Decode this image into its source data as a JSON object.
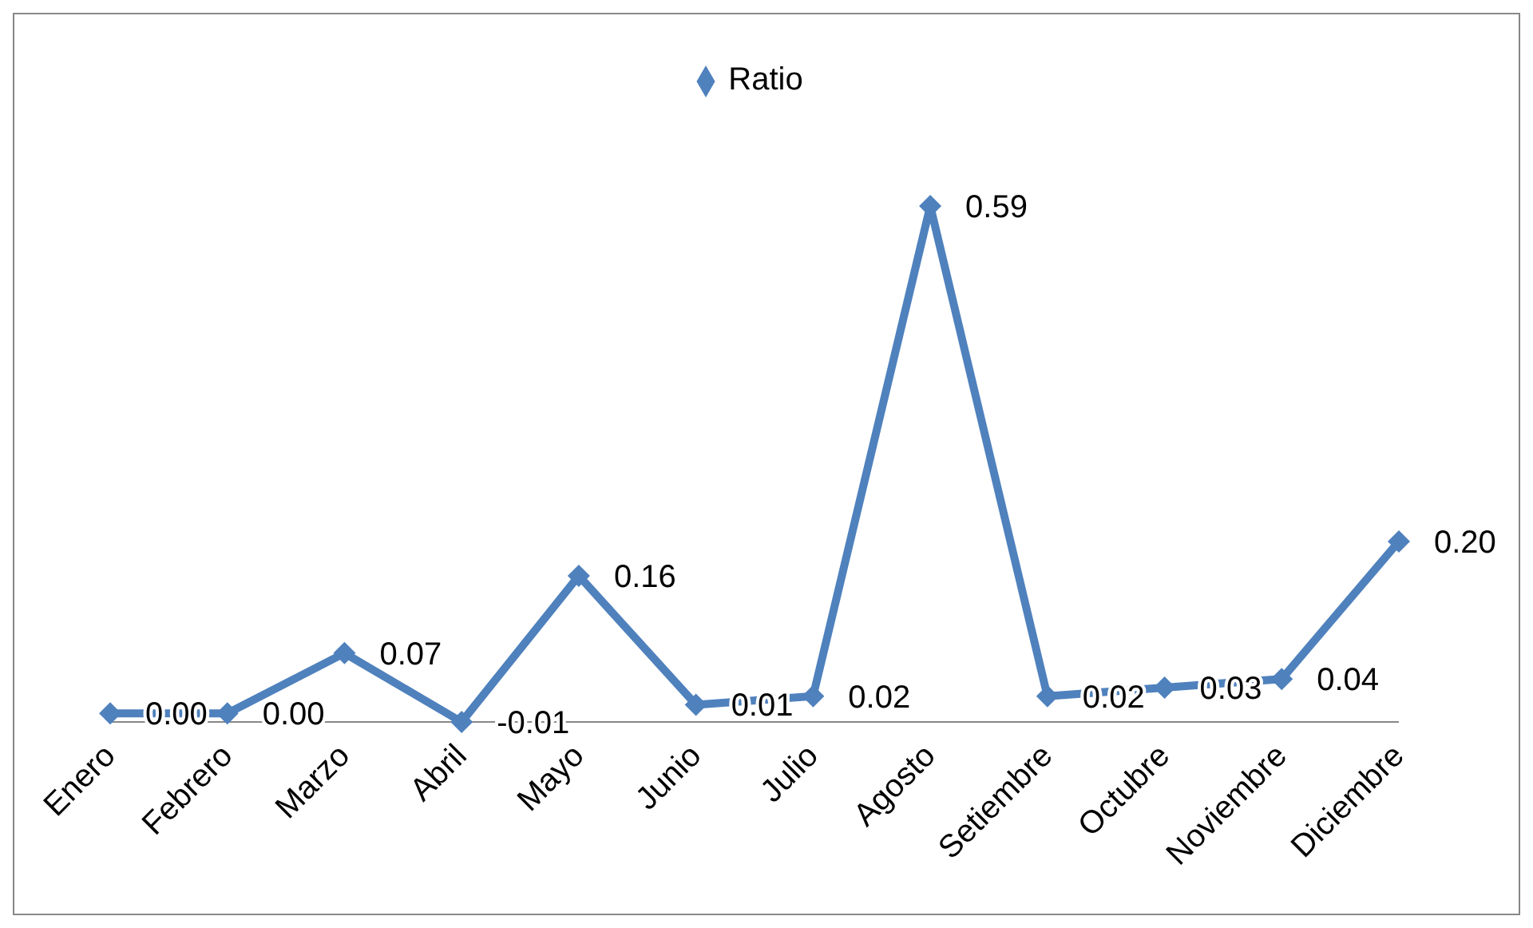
{
  "chart_data": {
    "type": "line",
    "categories": [
      "Enero",
      "Febrero",
      "Marzo",
      "Abril",
      "Mayo",
      "Junio",
      "Julio",
      "Agosto",
      "Setiembre",
      "Octubre",
      "Noviembre",
      "Diciembre"
    ],
    "series": [
      {
        "name": "Ratio",
        "color": "#4f81bd",
        "values": [
          0.0,
          0.0,
          0.07,
          -0.01,
          0.16,
          0.01,
          0.02,
          0.59,
          0.02,
          0.03,
          0.04,
          0.2
        ],
        "value_labels": [
          "0.00",
          "0.00",
          "0.07",
          "-0.01",
          "0.16",
          "0.01",
          "0.02",
          "0.59",
          "0.02",
          "0.03",
          "0.04",
          "0.20"
        ]
      }
    ],
    "legend": "top",
    "marker": "diamond",
    "grid": false
  }
}
